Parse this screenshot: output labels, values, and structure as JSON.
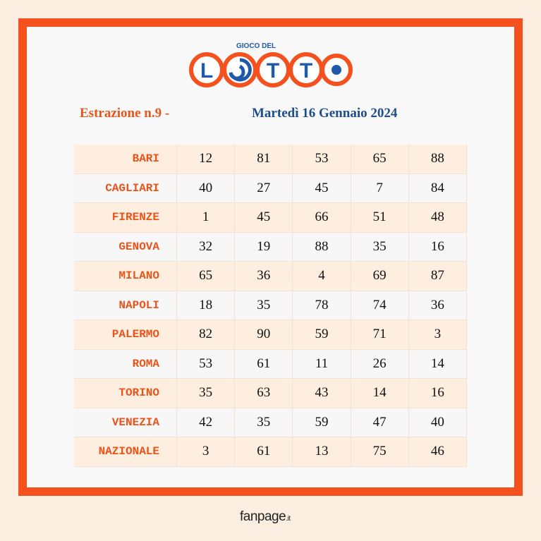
{
  "logo": {
    "subtitle": "GIOCO DEL",
    "letters": [
      "L",
      "T",
      "T"
    ]
  },
  "heading": {
    "draw": "Estrazione n.9 -",
    "date": "Martedì 16 Gennaio 2024"
  },
  "table": {
    "rows": [
      [
        "BARI",
        12,
        81,
        53,
        65,
        88
      ],
      [
        "CAGLIARI",
        40,
        27,
        45,
        7,
        84
      ],
      [
        "FIRENZE",
        1,
        45,
        66,
        51,
        48
      ],
      [
        "GENOVA",
        32,
        19,
        88,
        35,
        16
      ],
      [
        "MILANO",
        65,
        36,
        4,
        69,
        87
      ],
      [
        "NAPOLI",
        18,
        35,
        78,
        74,
        36
      ],
      [
        "PALERMO",
        82,
        90,
        59,
        71,
        3
      ],
      [
        "ROMA",
        53,
        61,
        11,
        26,
        14
      ],
      [
        "TORINO",
        35,
        63,
        43,
        14,
        16
      ],
      [
        "VENEZIA",
        42,
        35,
        59,
        47,
        40
      ],
      [
        "NAZIONALE",
        3,
        61,
        13,
        75,
        46
      ]
    ]
  },
  "footer": {
    "brand": "fanpage",
    "suffix": ".it"
  }
}
